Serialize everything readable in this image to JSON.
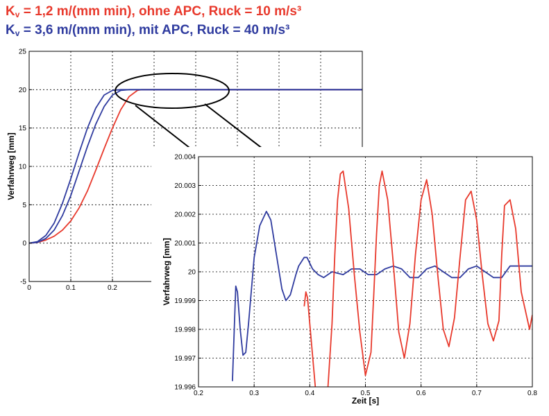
{
  "legend": [
    {
      "prefix": "K",
      "sub": "v",
      "rest": " = 1,2 m/(mm min), ohne APC, Ruck = 10 m/s³",
      "color": "#e8392c"
    },
    {
      "prefix": "K",
      "sub": "v",
      "rest": " = 3,6 m/(mm min), mit APC, Ruck = 40 m/s³",
      "color": "#2f3b9f"
    }
  ],
  "chart_data": [
    {
      "type": "line",
      "ylabel": "Verfahrweg  [mm]",
      "xlabel": "",
      "xlim": [
        0,
        0.8
      ],
      "ylim": [
        -5,
        25
      ],
      "xticks": [
        "0",
        "0.1",
        "0.2"
      ],
      "yticks": [
        "-5",
        "0",
        "5",
        "10",
        "15",
        "20",
        "25"
      ],
      "grid": true,
      "series": [
        {
          "color": "#e8392c",
          "x": [
            0,
            0.02,
            0.04,
            0.06,
            0.08,
            0.1,
            0.12,
            0.14,
            0.16,
            0.18,
            0.2,
            0.22,
            0.24,
            0.26,
            0.27,
            0.8
          ],
          "y": [
            0,
            0.1,
            0.4,
            0.9,
            1.7,
            2.9,
            4.6,
            6.8,
            9.5,
            12.3,
            15.0,
            17.4,
            19.1,
            19.9,
            20.0,
            20.0
          ]
        },
        {
          "color": "#2f3b9f",
          "x": [
            0,
            0.02,
            0.04,
            0.06,
            0.08,
            0.1,
            0.12,
            0.14,
            0.16,
            0.18,
            0.2,
            0.22,
            0.24,
            0.25,
            0.8
          ],
          "y": [
            0,
            0.1,
            0.6,
            1.7,
            3.6,
            6.2,
            9.4,
            12.6,
            15.5,
            17.8,
            19.3,
            19.9,
            20.0,
            20.0,
            20.0
          ]
        },
        {
          "color": "#2f3b9f",
          "x": [
            0,
            0.02,
            0.04,
            0.06,
            0.08,
            0.1,
            0.12,
            0.14,
            0.16,
            0.18,
            0.2,
            0.22,
            0.23,
            0.8
          ],
          "y": [
            0,
            0.2,
            1.0,
            2.6,
            5.2,
            8.4,
            11.8,
            15.0,
            17.6,
            19.3,
            19.9,
            20.0,
            20.0,
            20.0
          ]
        }
      ]
    },
    {
      "type": "line",
      "ylabel": "Verfahrweg  [mm]",
      "xlabel": "Zeit  [s]",
      "xlim": [
        0.2,
        0.8
      ],
      "ylim": [
        19.996,
        20.004
      ],
      "xticks": [
        "0.2",
        "0.3",
        "0.4",
        "0.5",
        "0.6",
        "0.7",
        "0.8"
      ],
      "yticks": [
        "19.996",
        "19.997",
        "19.998",
        "19.999",
        "20",
        "20.001",
        "20.002",
        "20.003",
        "20.004"
      ],
      "grid": true,
      "series": [
        {
          "color": "#2f3b9f",
          "x": [
            0.261,
            0.267,
            0.27,
            0.275,
            0.28,
            0.285,
            0.29,
            0.3,
            0.31,
            0.322,
            0.33,
            0.34,
            0.35,
            0.357,
            0.365,
            0.375,
            0.38,
            0.39,
            0.395,
            0.405,
            0.415,
            0.425,
            0.44,
            0.46,
            0.475,
            0.49,
            0.505,
            0.52,
            0.535,
            0.55,
            0.565,
            0.58,
            0.595,
            0.61,
            0.625,
            0.64,
            0.655,
            0.67,
            0.685,
            0.7,
            0.715,
            0.73,
            0.745,
            0.76,
            0.77,
            0.8
          ],
          "y": [
            19.9962,
            19.9995,
            19.9993,
            19.998,
            19.9971,
            19.9972,
            19.9982,
            20.0005,
            20.0016,
            20.0021,
            20.0018,
            20.0006,
            19.9994,
            19.999,
            19.9992,
            19.9999,
            20.0002,
            20.0005,
            20.0005,
            20.0001,
            19.9999,
            19.9998,
            20.0,
            19.9999,
            20.0001,
            20.0001,
            19.9999,
            19.9999,
            20.0001,
            20.0002,
            20.0001,
            19.9998,
            19.9998,
            20.0001,
            20.0002,
            20.0,
            19.9998,
            19.9998,
            20.0001,
            20.0002,
            20.0,
            19.9998,
            19.9998,
            20.0002,
            20.0002,
            20.0002
          ]
        },
        {
          "color": "#e8392c",
          "x": [
            0.39,
            0.393,
            0.396,
            0.4,
            0.41,
            0.42,
            0.43,
            0.44,
            0.445,
            0.45,
            0.455,
            0.46,
            0.47,
            0.48,
            0.49,
            0.5,
            0.51,
            0.515,
            0.52,
            0.525,
            0.53,
            0.54,
            0.55,
            0.56,
            0.57,
            0.58,
            0.59,
            0.6,
            0.61,
            0.62,
            0.63,
            0.64,
            0.65,
            0.66,
            0.67,
            0.68,
            0.69,
            0.7,
            0.71,
            0.72,
            0.73,
            0.74,
            0.745,
            0.75,
            0.76,
            0.77,
            0.78,
            0.795,
            0.8
          ],
          "y": [
            19.9988,
            19.9993,
            19.9991,
            19.9982,
            19.996,
            19.9945,
            19.9952,
            19.9982,
            20.0006,
            20.0025,
            20.0034,
            20.0035,
            20.0022,
            19.9999,
            19.9979,
            19.9964,
            19.9972,
            19.9992,
            20.0013,
            20.003,
            20.0035,
            20.0025,
            20.0003,
            19.9979,
            19.997,
            19.9982,
            20.0006,
            20.0025,
            20.0032,
            20.002,
            19.9999,
            19.998,
            19.9974,
            19.9984,
            20.0005,
            20.0025,
            20.0028,
            20.0018,
            19.9999,
            19.9982,
            19.9976,
            19.9983,
            20.0006,
            20.0023,
            20.0025,
            20.0015,
            19.9993,
            19.998,
            19.9985
          ]
        }
      ]
    }
  ]
}
